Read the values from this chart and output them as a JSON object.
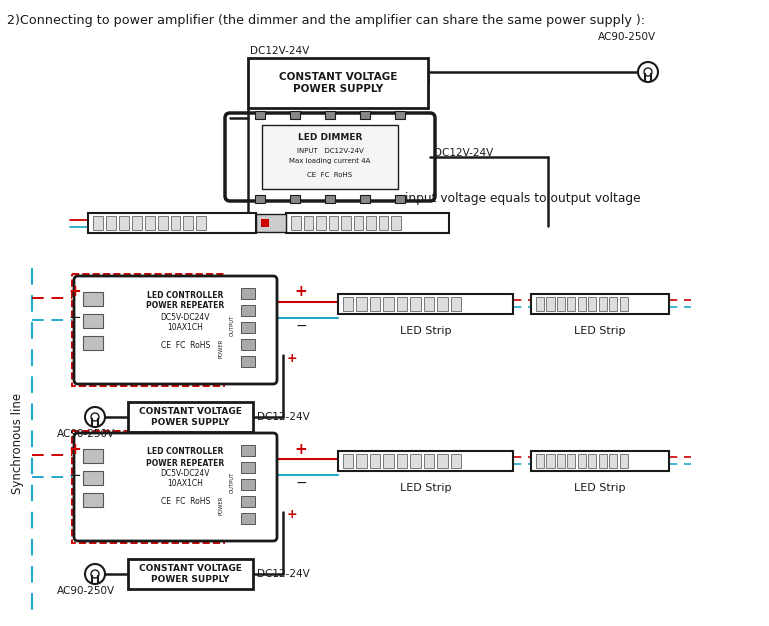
{
  "title": "2)Connecting to power amplifier (the dimmer and the amplifier can share the same power supply ):",
  "bg_color": "#ffffff",
  "lc": "#1a1a1a",
  "rc": "#cc0000",
  "bc": "#22aacc",
  "ps1_label": "CONSTANT VOLTAGE\nPOWER SUPPLY",
  "dimmer_title": "LED DIMMER",
  "dimmer_d1": "INPUT   DC12V-24V",
  "dimmer_d2": "Max loading current 4A",
  "dimmer_d3": "CE  FC  RoHS",
  "label_dc12v_top_left": "DC12V-24V",
  "label_ac90_top": "AC90-250V",
  "label_dc12v_top_right": "DC12V-24V",
  "label_input_voltage": "input voltage equals to output voltage",
  "label_sync": "Synchronous line",
  "label_ac90_b1": "AC90-250V",
  "label_ac90_b2": "AC90-250V",
  "label_dc12_b1": "DC12-24V",
  "label_dc12_b2": "DC12-24V",
  "label_led_strip": "LED Strip",
  "ps_small_label": "CONSTANT VOLTAGE\nPOWER SUPPLY",
  "ctrl_l1": "LED CONTROLLER",
  "ctrl_l2": "POWER REPEATER",
  "ctrl_l3": "DC5V-DC24V",
  "ctrl_l4": "10AX1CH",
  "ctrl_l5": "CE  FC  RoHS"
}
